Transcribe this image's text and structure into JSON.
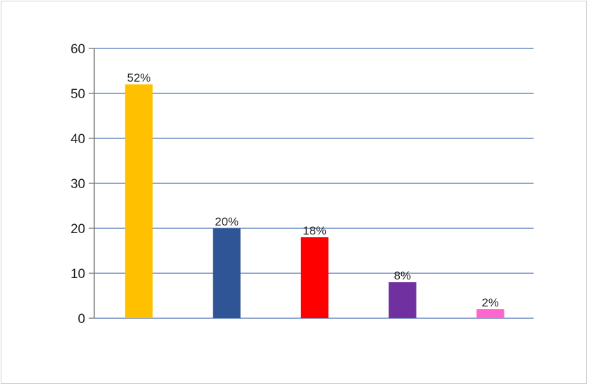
{
  "chart_data": {
    "type": "bar",
    "title": "",
    "xlabel": "",
    "ylabel": "",
    "ylim": [
      0,
      60
    ],
    "yticks": [
      0,
      10,
      20,
      30,
      40,
      50,
      60
    ],
    "grid": true,
    "values": [
      52,
      20,
      18,
      8,
      2
    ],
    "data_labels": [
      "52%",
      "20%",
      "18%",
      "8%",
      "2%"
    ],
    "colors": [
      "#FFC000",
      "#2F5597",
      "#FF0000",
      "#7030A0",
      "#FF66CC"
    ],
    "gridline_color": "#8EA6D0",
    "axis_color": "#808080"
  }
}
